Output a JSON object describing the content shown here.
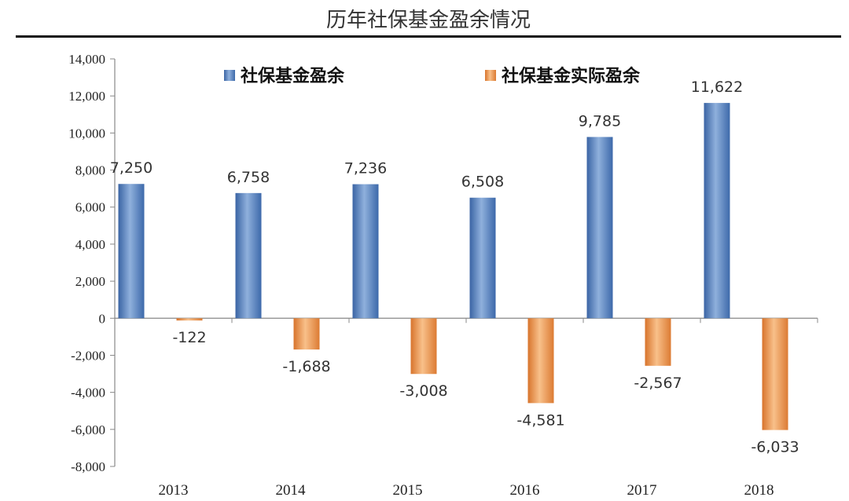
{
  "chart_data": {
    "type": "bar",
    "title": "历年社保基金盈余情况",
    "categories": [
      "2013",
      "2014",
      "2015",
      "2016",
      "2017",
      "2018"
    ],
    "series": [
      {
        "name": "社保基金盈余",
        "values": [
          7250,
          6758,
          7236,
          6508,
          9785,
          11622
        ],
        "labels": [
          "7,250",
          "6,758",
          "7,236",
          "6,508",
          "9,785",
          "11,622"
        ],
        "color": "#4f81bd"
      },
      {
        "name": "社保基金实际盈余",
        "values": [
          -122,
          -1688,
          -3008,
          -4581,
          -2567,
          -6033
        ],
        "labels": [
          "-122",
          "-1,688",
          "-3,008",
          "-4,581",
          "-2,567",
          "-6,033"
        ],
        "color": "#e8924a"
      }
    ],
    "ylim": [
      -8000,
      14000
    ],
    "yticks": [
      14000,
      12000,
      10000,
      8000,
      6000,
      4000,
      2000,
      0,
      -2000,
      -4000,
      -6000,
      -8000
    ],
    "ytick_labels": [
      "14,000",
      "12,000",
      "10,000",
      "8,000",
      "6,000",
      "4,000",
      "2,000",
      "0",
      "-2,000",
      "-4,000",
      "-6,000",
      "-8,000"
    ],
    "grid": false,
    "legend_position": "top",
    "xlabel": "",
    "ylabel": ""
  }
}
